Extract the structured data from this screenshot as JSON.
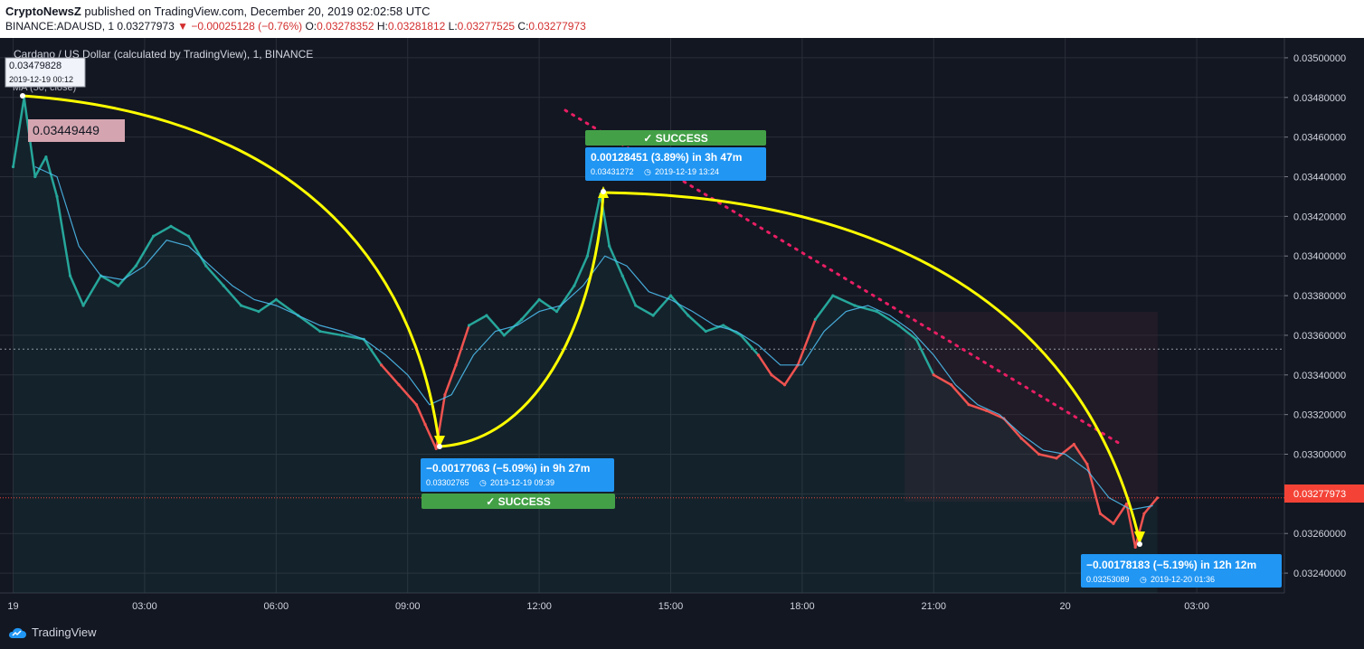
{
  "header": {
    "publisher": "CryptoNewsZ",
    "published_text": "published on TradingView.com, December 20, 2019 02:02:58 UTC",
    "symbol": "BINANCE:ADAUSD, 1",
    "last": "0.03277973",
    "change": "−0.00025128 (−0.76%)",
    "o_label": "O:",
    "o": "0.03278352",
    "h_label": "H:",
    "h": "0.03281812",
    "l_label": "L:",
    "l": "0.03277525",
    "c_label": "C:",
    "c": "0.03277973"
  },
  "chart_title": "Cardano / US Dollar (calculated by TradingView), 1, BINANCE",
  "ma_label": "MA (50, close)",
  "colors": {
    "bg": "#131722",
    "up": "#26a69a",
    "down": "#ef5350",
    "accent_yellow": "#ffff00",
    "label_blue": "#2196f3",
    "success_green": "#43a047",
    "price_red": "#f44336"
  },
  "crosshair_tooltip": {
    "price": "0.03479828",
    "time": "2019-12-19 00:12"
  },
  "price_tag_left": "0.03449449",
  "last_price_tag": "0.03277973",
  "measures": [
    {
      "main": "−0.00177063 (−5.09%) in 9h 27m",
      "sub_price": "0.03302765",
      "sub_time": "2019-12-19  09:39",
      "status": "✓ SUCCESS"
    },
    {
      "main": "0.00128451 (3.89%) in 3h 47m",
      "sub_price": "0.03431272",
      "sub_time": "2019-12-19  13:24",
      "status": "✓ SUCCESS"
    },
    {
      "main": "−0.00178183 (−5.19%) in 12h 12m",
      "sub_price": "0.03253089",
      "sub_time": "2019-12-20  01:36"
    }
  ],
  "branding": "TradingView",
  "chart_data": {
    "type": "line",
    "title": "Cardano / US Dollar (calculated by TradingView), 1, BINANCE",
    "xlabel": "",
    "ylabel": "",
    "x_tick_labels": [
      "19",
      "03:00",
      "06:00",
      "09:00",
      "12:00",
      "15:00",
      "18:00",
      "21:00",
      "20",
      "03:00"
    ],
    "x_tick_hours": [
      0,
      3,
      6,
      9,
      12,
      15,
      18,
      21,
      24,
      27
    ],
    "y_ticks": [
      "0.03500000",
      "0.03480000",
      "0.03460000",
      "0.03440000",
      "0.03420000",
      "0.03400000",
      "0.03380000",
      "0.03360000",
      "0.03340000",
      "0.03320000",
      "0.03300000",
      "0.03280000",
      "0.03260000",
      "0.03240000"
    ],
    "ylim": [
      0.0323,
      0.0351
    ],
    "xlim_hours": [
      -0.3,
      29.0
    ],
    "grid": true,
    "series": [
      {
        "name": "ADAUSD",
        "points": [
          [
            0.0,
            0.03445
          ],
          [
            0.25,
            0.03479828
          ],
          [
            0.5,
            0.0344
          ],
          [
            0.75,
            0.0345
          ],
          [
            1.0,
            0.0343
          ],
          [
            1.3,
            0.0339
          ],
          [
            1.6,
            0.03375
          ],
          [
            2.0,
            0.0339
          ],
          [
            2.4,
            0.03385
          ],
          [
            2.8,
            0.03395
          ],
          [
            3.2,
            0.0341
          ],
          [
            3.6,
            0.03415
          ],
          [
            4.0,
            0.0341
          ],
          [
            4.4,
            0.03395
          ],
          [
            4.8,
            0.03385
          ],
          [
            5.2,
            0.03375
          ],
          [
            5.6,
            0.03372
          ],
          [
            6.0,
            0.03378
          ],
          [
            6.5,
            0.0337
          ],
          [
            7.0,
            0.03362
          ],
          [
            7.5,
            0.0336
          ],
          [
            8.0,
            0.03358
          ],
          [
            8.4,
            0.03345
          ],
          [
            8.8,
            0.03335
          ],
          [
            9.2,
            0.03325
          ],
          [
            9.4,
            0.03315
          ],
          [
            9.65,
            0.03302765
          ],
          [
            9.85,
            0.0333
          ],
          [
            10.1,
            0.03345
          ],
          [
            10.4,
            0.03365
          ],
          [
            10.8,
            0.0337
          ],
          [
            11.2,
            0.0336
          ],
          [
            11.6,
            0.03368
          ],
          [
            12.0,
            0.03378
          ],
          [
            12.4,
            0.03372
          ],
          [
            12.8,
            0.03385
          ],
          [
            13.1,
            0.034
          ],
          [
            13.4,
            0.03431272
          ],
          [
            13.6,
            0.03405
          ],
          [
            13.9,
            0.0339
          ],
          [
            14.2,
            0.03375
          ],
          [
            14.6,
            0.0337
          ],
          [
            15.0,
            0.0338
          ],
          [
            15.4,
            0.0337
          ],
          [
            15.8,
            0.03362
          ],
          [
            16.2,
            0.03365
          ],
          [
            16.6,
            0.0336
          ],
          [
            17.0,
            0.0335
          ],
          [
            17.3,
            0.0334
          ],
          [
            17.6,
            0.03335
          ],
          [
            17.9,
            0.03345
          ],
          [
            18.3,
            0.03368
          ],
          [
            18.7,
            0.0338
          ],
          [
            19.2,
            0.03375
          ],
          [
            19.7,
            0.03372
          ],
          [
            20.2,
            0.03365
          ],
          [
            20.6,
            0.03358
          ],
          [
            21.0,
            0.0334
          ],
          [
            21.4,
            0.03335
          ],
          [
            21.8,
            0.03325
          ],
          [
            22.2,
            0.03322
          ],
          [
            22.6,
            0.03318
          ],
          [
            23.0,
            0.03308
          ],
          [
            23.4,
            0.033
          ],
          [
            23.8,
            0.03298
          ],
          [
            24.2,
            0.03305
          ],
          [
            24.5,
            0.03295
          ],
          [
            24.8,
            0.0327
          ],
          [
            25.1,
            0.03265
          ],
          [
            25.4,
            0.03275
          ],
          [
            25.6,
            0.03253089
          ],
          [
            25.8,
            0.0327
          ],
          [
            26.1,
            0.03277973
          ]
        ]
      }
    ],
    "ma": [
      [
        0.5,
        0.03445
      ],
      [
        1.0,
        0.0344
      ],
      [
        1.5,
        0.03405
      ],
      [
        2.0,
        0.0339
      ],
      [
        2.5,
        0.03388
      ],
      [
        3.0,
        0.03395
      ],
      [
        3.5,
        0.03408
      ],
      [
        4.0,
        0.03405
      ],
      [
        4.5,
        0.03395
      ],
      [
        5.0,
        0.03385
      ],
      [
        5.5,
        0.03378
      ],
      [
        6.0,
        0.03375
      ],
      [
        6.5,
        0.0337
      ],
      [
        7.0,
        0.03365
      ],
      [
        7.5,
        0.03362
      ],
      [
        8.0,
        0.03358
      ],
      [
        8.5,
        0.0335
      ],
      [
        9.0,
        0.0334
      ],
      [
        9.5,
        0.03325
      ],
      [
        10.0,
        0.0333
      ],
      [
        10.5,
        0.0335
      ],
      [
        11.0,
        0.03362
      ],
      [
        11.5,
        0.03365
      ],
      [
        12.0,
        0.03372
      ],
      [
        12.5,
        0.03375
      ],
      [
        13.0,
        0.03385
      ],
      [
        13.5,
        0.034
      ],
      [
        14.0,
        0.03395
      ],
      [
        14.5,
        0.03382
      ],
      [
        15.0,
        0.03378
      ],
      [
        15.5,
        0.03372
      ],
      [
        16.0,
        0.03365
      ],
      [
        16.5,
        0.03362
      ],
      [
        17.0,
        0.03355
      ],
      [
        17.5,
        0.03345
      ],
      [
        18.0,
        0.03345
      ],
      [
        18.5,
        0.03362
      ],
      [
        19.0,
        0.03372
      ],
      [
        19.5,
        0.03375
      ],
      [
        20.0,
        0.0337
      ],
      [
        20.5,
        0.03362
      ],
      [
        21.0,
        0.0335
      ],
      [
        21.5,
        0.03335
      ],
      [
        22.0,
        0.03325
      ],
      [
        22.5,
        0.0332
      ],
      [
        23.0,
        0.0331
      ],
      [
        23.5,
        0.03302
      ],
      [
        24.0,
        0.033
      ],
      [
        24.5,
        0.03292
      ],
      [
        25.0,
        0.03278
      ],
      [
        25.5,
        0.03272
      ],
      [
        26.0,
        0.03274
      ]
    ],
    "last_price": 0.03277973,
    "reference_price": 0.03353
  }
}
